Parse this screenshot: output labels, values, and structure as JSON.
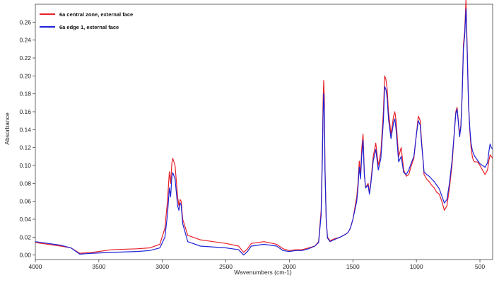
{
  "chart_data": {
    "type": "line",
    "title": "",
    "xlabel": "Wavenumbers (cm-1)",
    "ylabel": "Absorbance",
    "xlim": [
      4000,
      400
    ],
    "ylim": [
      -0.005,
      0.28
    ],
    "x_reversed": true,
    "grid": false,
    "legend_position": "top-left",
    "x_ticks": [
      4000,
      3500,
      3000,
      2500,
      2000,
      1500,
      1000,
      500
    ],
    "x_tick_labels": [
      "4000",
      "3500",
      "3000",
      "2500",
      "2000",
      "1500",
      "1000",
      "500"
    ],
    "y_ticks": [
      0.0,
      0.02,
      0.04,
      0.06,
      0.08,
      0.1,
      0.12,
      0.14,
      0.16,
      0.18,
      0.2,
      0.22,
      0.24,
      0.26
    ],
    "y_tick_labels": [
      "0.00",
      "0.02",
      "0.04",
      "0.06",
      "0.08",
      "0.10",
      "0.12",
      "0.14",
      "0.16",
      "0.18",
      "0.20",
      "0.22",
      "0.24",
      "0.26"
    ],
    "series": [
      {
        "name": "6a central zone, external face",
        "color": "#e8202a",
        "x": [
          4000,
          3800,
          3720,
          3650,
          3550,
          3400,
          3200,
          3100,
          3020,
          2980,
          2960,
          2945,
          2935,
          2925,
          2918,
          2900,
          2880,
          2870,
          2860,
          2852,
          2840,
          2800,
          2700,
          2600,
          2500,
          2400,
          2360,
          2330,
          2300,
          2200,
          2100,
          2050,
          2000,
          1950,
          1900,
          1850,
          1800,
          1770,
          1750,
          1740,
          1735,
          1730,
          1725,
          1720,
          1710,
          1700,
          1680,
          1650,
          1600,
          1560,
          1540,
          1520,
          1500,
          1470,
          1460,
          1450,
          1440,
          1430,
          1420,
          1410,
          1400,
          1380,
          1370,
          1360,
          1340,
          1320,
          1300,
          1280,
          1260,
          1250,
          1240,
          1230,
          1220,
          1200,
          1180,
          1170,
          1160,
          1140,
          1120,
          1100,
          1080,
          1060,
          1040,
          1020,
          1000,
          985,
          970,
          960,
          950,
          940,
          920,
          900,
          880,
          860,
          840,
          820,
          800,
          780,
          760,
          740,
          720,
          700,
          690,
          680,
          670,
          660,
          650,
          640,
          630,
          620,
          610,
          600,
          590,
          580,
          570,
          560,
          550,
          540,
          520,
          500,
          480,
          460,
          440,
          430,
          420,
          410,
          400
        ],
        "y": [
          0.014,
          0.01,
          0.008,
          0.002,
          0.003,
          0.006,
          0.007,
          0.008,
          0.012,
          0.03,
          0.06,
          0.093,
          0.08,
          0.103,
          0.108,
          0.1,
          0.065,
          0.055,
          0.062,
          0.06,
          0.04,
          0.022,
          0.017,
          0.015,
          0.013,
          0.01,
          0.003,
          0.007,
          0.013,
          0.015,
          0.012,
          0.007,
          0.005,
          0.006,
          0.006,
          0.008,
          0.01,
          0.015,
          0.05,
          0.12,
          0.17,
          0.195,
          0.175,
          0.1,
          0.04,
          0.02,
          0.016,
          0.018,
          0.02,
          0.023,
          0.025,
          0.03,
          0.04,
          0.065,
          0.08,
          0.105,
          0.09,
          0.12,
          0.135,
          0.09,
          0.075,
          0.08,
          0.07,
          0.08,
          0.11,
          0.125,
          0.1,
          0.115,
          0.16,
          0.2,
          0.196,
          0.185,
          0.16,
          0.135,
          0.155,
          0.16,
          0.15,
          0.11,
          0.12,
          0.095,
          0.088,
          0.09,
          0.1,
          0.108,
          0.135,
          0.155,
          0.15,
          0.128,
          0.11,
          0.09,
          0.085,
          0.082,
          0.078,
          0.075,
          0.07,
          0.068,
          0.06,
          0.05,
          0.055,
          0.075,
          0.1,
          0.14,
          0.16,
          0.165,
          0.15,
          0.135,
          0.145,
          0.18,
          0.235,
          0.25,
          0.285,
          0.23,
          0.17,
          0.14,
          0.12,
          0.11,
          0.105,
          0.104,
          0.104,
          0.1,
          0.095,
          0.09,
          0.095,
          0.105,
          0.112,
          0.11,
          0.108
        ]
      },
      {
        "name": "6a edge 1, external face",
        "color": "#1c22d6",
        "x": [
          4000,
          3800,
          3720,
          3650,
          3550,
          3400,
          3200,
          3100,
          3020,
          2980,
          2960,
          2945,
          2935,
          2925,
          2918,
          2900,
          2880,
          2870,
          2860,
          2852,
          2840,
          2800,
          2700,
          2600,
          2500,
          2400,
          2360,
          2330,
          2300,
          2200,
          2100,
          2050,
          2000,
          1950,
          1900,
          1850,
          1800,
          1770,
          1750,
          1740,
          1735,
          1730,
          1725,
          1720,
          1710,
          1700,
          1680,
          1650,
          1600,
          1560,
          1540,
          1520,
          1500,
          1470,
          1460,
          1450,
          1440,
          1430,
          1420,
          1410,
          1400,
          1380,
          1370,
          1360,
          1340,
          1320,
          1300,
          1280,
          1260,
          1250,
          1240,
          1230,
          1220,
          1200,
          1180,
          1170,
          1160,
          1140,
          1120,
          1100,
          1080,
          1060,
          1040,
          1020,
          1000,
          985,
          970,
          960,
          950,
          940,
          920,
          900,
          880,
          860,
          840,
          820,
          800,
          780,
          760,
          740,
          720,
          700,
          690,
          680,
          670,
          660,
          650,
          640,
          630,
          620,
          610,
          600,
          590,
          580,
          570,
          560,
          550,
          540,
          520,
          500,
          480,
          460,
          440,
          430,
          420,
          410,
          400
        ],
        "y": [
          0.015,
          0.011,
          0.008,
          0.001,
          0.002,
          0.003,
          0.004,
          0.005,
          0.008,
          0.02,
          0.045,
          0.075,
          0.065,
          0.088,
          0.092,
          0.085,
          0.055,
          0.05,
          0.058,
          0.056,
          0.035,
          0.015,
          0.01,
          0.009,
          0.008,
          0.006,
          0.0,
          0.004,
          0.01,
          0.012,
          0.01,
          0.005,
          0.004,
          0.005,
          0.005,
          0.007,
          0.01,
          0.014,
          0.045,
          0.11,
          0.155,
          0.18,
          0.16,
          0.095,
          0.038,
          0.019,
          0.015,
          0.017,
          0.02,
          0.023,
          0.025,
          0.03,
          0.04,
          0.06,
          0.075,
          0.098,
          0.085,
          0.112,
          0.128,
          0.09,
          0.075,
          0.078,
          0.068,
          0.078,
          0.105,
          0.118,
          0.095,
          0.108,
          0.15,
          0.188,
          0.185,
          0.175,
          0.152,
          0.13,
          0.148,
          0.152,
          0.14,
          0.104,
          0.11,
          0.092,
          0.09,
          0.095,
          0.103,
          0.11,
          0.135,
          0.15,
          0.145,
          0.125,
          0.11,
          0.093,
          0.09,
          0.088,
          0.085,
          0.082,
          0.078,
          0.074,
          0.066,
          0.058,
          0.062,
          0.08,
          0.105,
          0.14,
          0.158,
          0.163,
          0.148,
          0.132,
          0.143,
          0.178,
          0.23,
          0.245,
          0.275,
          0.225,
          0.168,
          0.142,
          0.125,
          0.117,
          0.113,
          0.11,
          0.106,
          0.102,
          0.1,
          0.098,
          0.103,
          0.115,
          0.124,
          0.12,
          0.118
        ]
      }
    ]
  }
}
